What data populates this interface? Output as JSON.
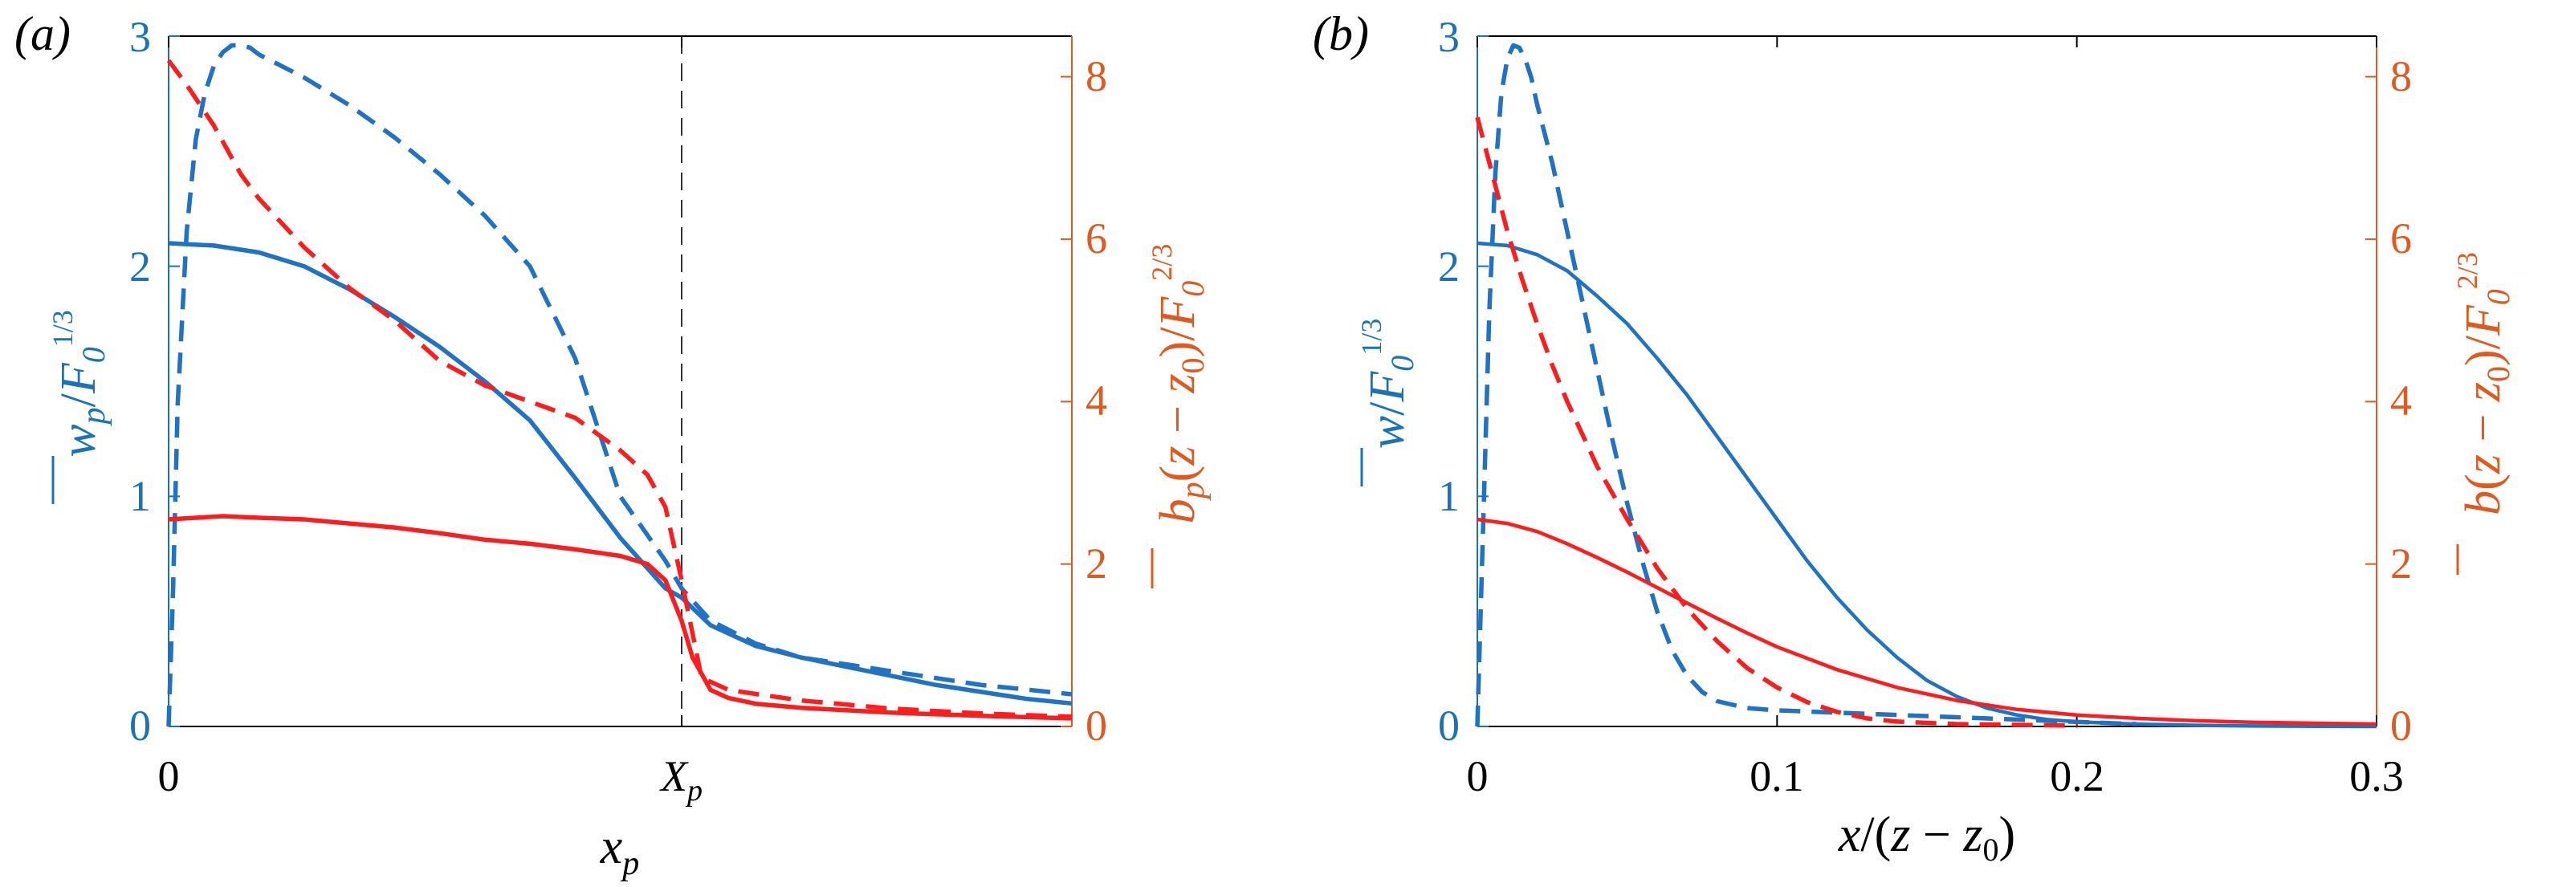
{
  "colors": {
    "w_axis": "#1a73b8",
    "w_line": "#1f72c4",
    "b_axis": "#e05a20",
    "b_line": "#ff1c1c",
    "frame": "#000000",
    "marker": "#333333"
  },
  "chart_data": [
    {
      "panel_label": "(a)",
      "type": "line",
      "xlabel": "x_p",
      "x_ticks": [
        {
          "value": 0,
          "label": "0"
        },
        {
          "value": 0.568,
          "label": "X_p"
        }
      ],
      "xlim": [
        0,
        1
      ],
      "vertical_marker": 0.568,
      "ylabel_left": "w_p / F0^(1/3)",
      "ylim_left": [
        0,
        3
      ],
      "yticks_left": [
        0,
        1,
        2,
        3
      ],
      "ylabel_right": "b_p (z − z0) / F0^(2/3)",
      "ylim_right": [
        0,
        8.5
      ],
      "yticks_right": [
        0,
        2,
        4,
        6,
        8
      ],
      "series": [
        {
          "name": "w_solid",
          "axis": "left",
          "style": "solid",
          "x": [
            0,
            0.05,
            0.1,
            0.15,
            0.2,
            0.25,
            0.3,
            0.35,
            0.4,
            0.45,
            0.5,
            0.55,
            0.568,
            0.6,
            0.65,
            0.7,
            0.75,
            0.8,
            0.85,
            0.9,
            0.95,
            1.0
          ],
          "y": [
            2.1,
            2.09,
            2.06,
            2.0,
            1.9,
            1.78,
            1.65,
            1.5,
            1.33,
            1.08,
            0.82,
            0.6,
            0.56,
            0.44,
            0.35,
            0.3,
            0.26,
            0.22,
            0.18,
            0.15,
            0.12,
            0.1
          ]
        },
        {
          "name": "w_dashed",
          "axis": "left",
          "style": "dashed",
          "x": [
            0,
            0.005,
            0.01,
            0.02,
            0.03,
            0.04,
            0.05,
            0.06,
            0.07,
            0.08,
            0.09,
            0.1,
            0.15,
            0.2,
            0.25,
            0.3,
            0.35,
            0.4,
            0.45,
            0.5,
            0.55,
            0.568,
            0.6,
            0.65,
            0.7,
            0.75,
            0.8,
            0.85,
            0.9,
            0.95,
            1.0
          ],
          "y": [
            0,
            0.6,
            1.4,
            2.15,
            2.55,
            2.75,
            2.87,
            2.93,
            2.96,
            2.96,
            2.95,
            2.92,
            2.82,
            2.7,
            2.56,
            2.4,
            2.22,
            2.0,
            1.6,
            1.0,
            0.72,
            0.6,
            0.46,
            0.36,
            0.3,
            0.27,
            0.24,
            0.21,
            0.18,
            0.16,
            0.14
          ]
        },
        {
          "name": "b_solid",
          "axis": "right",
          "style": "solid",
          "x": [
            0,
            0.03,
            0.06,
            0.1,
            0.15,
            0.2,
            0.25,
            0.3,
            0.35,
            0.4,
            0.45,
            0.5,
            0.53,
            0.55,
            0.568,
            0.58,
            0.6,
            0.62,
            0.65,
            0.7,
            0.8,
            0.9,
            1.0
          ],
          "y": [
            2.55,
            2.57,
            2.59,
            2.57,
            2.55,
            2.5,
            2.45,
            2.38,
            2.3,
            2.25,
            2.18,
            2.1,
            2.0,
            1.8,
            1.3,
            0.85,
            0.45,
            0.35,
            0.28,
            0.23,
            0.17,
            0.13,
            0.1
          ]
        },
        {
          "name": "b_dashed",
          "axis": "right",
          "style": "dashed",
          "x": [
            0,
            0.02,
            0.05,
            0.08,
            0.1,
            0.15,
            0.2,
            0.25,
            0.3,
            0.35,
            0.4,
            0.45,
            0.5,
            0.53,
            0.55,
            0.568,
            0.59,
            0.62,
            0.65,
            0.7,
            0.8,
            0.9,
            1.0
          ],
          "y": [
            8.2,
            7.9,
            7.4,
            6.8,
            6.5,
            5.9,
            5.4,
            5.0,
            4.5,
            4.2,
            4.0,
            3.8,
            3.4,
            3.1,
            2.7,
            1.8,
            0.6,
            0.45,
            0.4,
            0.32,
            0.22,
            0.16,
            0.12
          ]
        }
      ]
    },
    {
      "panel_label": "(b)",
      "type": "line",
      "xlabel": "x / (z − z0)",
      "x_ticks": [
        {
          "value": 0,
          "label": "0"
        },
        {
          "value": 0.1,
          "label": "0.1"
        },
        {
          "value": 0.2,
          "label": "0.2"
        },
        {
          "value": 0.3,
          "label": "0.3"
        }
      ],
      "xlim": [
        0,
        0.3
      ],
      "ylabel_left": "w / F0^(1/3)",
      "ylim_left": [
        0,
        3
      ],
      "yticks_left": [
        0,
        1,
        2,
        3
      ],
      "ylabel_right": "b (z − z0) / F0^(2/3)",
      "ylim_right": [
        0,
        8.5
      ],
      "yticks_right": [
        0,
        2,
        4,
        6,
        8
      ],
      "series": [
        {
          "name": "w_solid",
          "axis": "left",
          "style": "solid",
          "x": [
            0,
            0.01,
            0.02,
            0.03,
            0.04,
            0.05,
            0.06,
            0.07,
            0.08,
            0.09,
            0.1,
            0.11,
            0.12,
            0.13,
            0.14,
            0.15,
            0.16,
            0.17,
            0.18,
            0.19,
            0.2,
            0.22,
            0.24,
            0.26,
            0.28,
            0.3
          ],
          "y": [
            2.1,
            2.09,
            2.05,
            1.98,
            1.87,
            1.75,
            1.6,
            1.44,
            1.26,
            1.08,
            0.9,
            0.72,
            0.56,
            0.42,
            0.3,
            0.2,
            0.13,
            0.08,
            0.05,
            0.03,
            0.02,
            0.01,
            0.005,
            0.002,
            0.001,
            0
          ]
        },
        {
          "name": "w_dashed",
          "axis": "left",
          "style": "dashed",
          "x": [
            0,
            0.002,
            0.004,
            0.006,
            0.008,
            0.01,
            0.012,
            0.014,
            0.016,
            0.018,
            0.02,
            0.025,
            0.03,
            0.035,
            0.04,
            0.045,
            0.05,
            0.055,
            0.06,
            0.065,
            0.07,
            0.075,
            0.08,
            0.09,
            0.1,
            0.12,
            0.14,
            0.16,
            0.18,
            0.2,
            0.22
          ],
          "y": [
            0,
            0.9,
            1.8,
            2.4,
            2.75,
            2.9,
            2.96,
            2.95,
            2.9,
            2.82,
            2.7,
            2.45,
            2.15,
            1.85,
            1.55,
            1.25,
            0.97,
            0.72,
            0.5,
            0.33,
            0.22,
            0.15,
            0.11,
            0.08,
            0.07,
            0.06,
            0.05,
            0.04,
            0.03,
            0.02,
            0.01
          ]
        },
        {
          "name": "b_solid",
          "axis": "right",
          "style": "solid",
          "x": [
            0,
            0.01,
            0.02,
            0.03,
            0.04,
            0.05,
            0.06,
            0.07,
            0.08,
            0.09,
            0.1,
            0.12,
            0.14,
            0.16,
            0.18,
            0.2,
            0.22,
            0.24,
            0.26,
            0.28,
            0.3
          ],
          "y": [
            2.55,
            2.5,
            2.4,
            2.25,
            2.08,
            1.9,
            1.71,
            1.52,
            1.33,
            1.15,
            0.98,
            0.7,
            0.48,
            0.32,
            0.21,
            0.14,
            0.1,
            0.07,
            0.05,
            0.04,
            0.03
          ]
        },
        {
          "name": "b_dashed",
          "axis": "right",
          "style": "dashed",
          "x": [
            0,
            0.005,
            0.01,
            0.015,
            0.02,
            0.025,
            0.03,
            0.035,
            0.04,
            0.05,
            0.06,
            0.07,
            0.08,
            0.09,
            0.1,
            0.11,
            0.12,
            0.13,
            0.14,
            0.16,
            0.18,
            0.2
          ],
          "y": [
            7.5,
            6.8,
            6.1,
            5.5,
            4.95,
            4.45,
            4.0,
            3.6,
            3.2,
            2.55,
            1.95,
            1.45,
            1.05,
            0.72,
            0.48,
            0.3,
            0.18,
            0.1,
            0.06,
            0.03,
            0.02,
            0.01
          ]
        }
      ]
    }
  ]
}
